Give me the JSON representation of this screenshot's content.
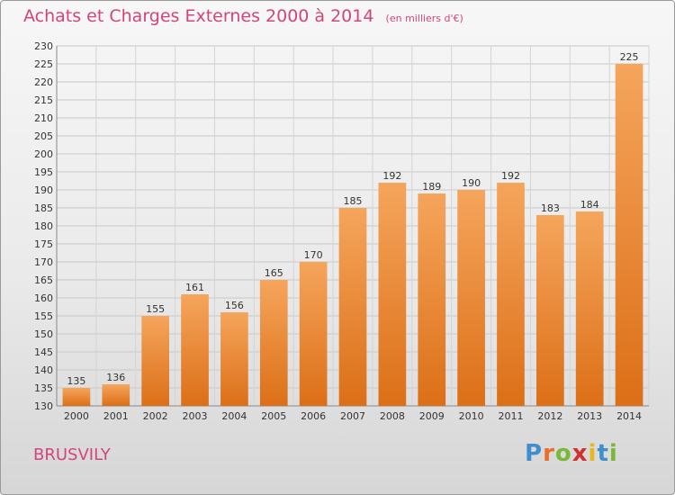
{
  "title": "Achats et Charges Externes 2000 à 2014",
  "subtitle": "(en milliers d'€)",
  "town": "BRUSVILY",
  "logo_letters": [
    "P",
    "r",
    "o",
    "x",
    "i",
    "t",
    "i"
  ],
  "colors": {
    "bar_light": "#f5a55c",
    "bar_dark": "#dc6f17",
    "title": "#d2457c"
  },
  "chart_data": {
    "type": "bar",
    "title": "Achats et Charges Externes 2000 à 2014",
    "subtitle": "(en milliers d'€)",
    "categories": [
      "2000",
      "2001",
      "2002",
      "2003",
      "2004",
      "2005",
      "2006",
      "2007",
      "2008",
      "2009",
      "2010",
      "2011",
      "2012",
      "2013",
      "2014"
    ],
    "values": [
      135,
      136,
      155,
      161,
      156,
      165,
      170,
      185,
      192,
      189,
      190,
      192,
      183,
      184,
      225
    ],
    "ylim": [
      130,
      230
    ],
    "ytick_step": 5,
    "grid": true
  }
}
